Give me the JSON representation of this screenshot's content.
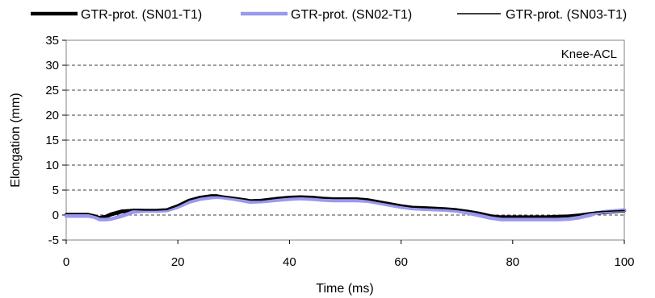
{
  "chart_data": {
    "type": "line",
    "title": "",
    "annotation": "Knee-ACL",
    "xlabel": "Time (ms)",
    "ylabel": "Elongation (mm)",
    "xlim": [
      0,
      100
    ],
    "ylim": [
      -5,
      35
    ],
    "xticks": [
      "0",
      "20",
      "40",
      "60",
      "80",
      "100"
    ],
    "xtick_values": [
      0,
      20,
      40,
      60,
      80,
      100
    ],
    "yticks": [
      "-5",
      "0",
      "5",
      "10",
      "15",
      "20",
      "25",
      "30",
      "35"
    ],
    "ytick_values": [
      -5,
      0,
      5,
      10,
      15,
      20,
      25,
      30,
      35
    ],
    "grid": "horizontal-dashed",
    "legend_position": "top",
    "series": [
      {
        "name": "GTR-prot. (SN01-T1)",
        "color": "#000000",
        "style": "thick",
        "x": [
          0,
          2,
          4,
          5,
          6,
          7,
          8,
          10,
          12,
          14,
          16,
          18,
          20,
          22,
          24,
          26,
          27,
          28,
          30,
          32,
          33,
          35,
          38,
          40,
          42,
          44,
          46,
          48,
          50,
          52,
          54,
          56,
          58,
          60,
          62,
          64,
          66,
          68,
          70,
          72,
          74,
          76,
          78,
          80,
          82,
          84,
          86,
          88,
          90,
          92,
          94,
          95,
          96,
          98,
          100
        ],
        "y": [
          0,
          0,
          0,
          -0.2,
          -0.6,
          -0.4,
          0.1,
          0.7,
          0.9,
          0.9,
          0.9,
          1.0,
          1.8,
          2.9,
          3.5,
          3.8,
          3.8,
          3.6,
          3.3,
          3.0,
          2.8,
          2.9,
          3.3,
          3.5,
          3.6,
          3.5,
          3.3,
          3.2,
          3.2,
          3.2,
          3.0,
          2.6,
          2.2,
          1.8,
          1.5,
          1.4,
          1.3,
          1.2,
          1.0,
          0.7,
          0.3,
          -0.2,
          -0.5,
          -0.5,
          -0.5,
          -0.5,
          -0.5,
          -0.4,
          -0.3,
          -0.1,
          0.2,
          0.4,
          0.5,
          0.7,
          0.9
        ]
      },
      {
        "name": "GTR-prot. (SN02-T1)",
        "color": "#9999ee",
        "style": "thick",
        "x": [
          0,
          2,
          4,
          5,
          6,
          7,
          8,
          10,
          12,
          14,
          16,
          18,
          20,
          22,
          24,
          26,
          27,
          28,
          30,
          32,
          33,
          35,
          38,
          40,
          42,
          44,
          46,
          48,
          50,
          52,
          54,
          56,
          58,
          60,
          62,
          64,
          66,
          68,
          70,
          72,
          74,
          76,
          78,
          80,
          82,
          84,
          86,
          88,
          90,
          92,
          94,
          95,
          96,
          98,
          100
        ],
        "y": [
          -0.2,
          -0.2,
          -0.2,
          -0.4,
          -0.9,
          -0.9,
          -0.8,
          -0.2,
          0.6,
          0.8,
          0.8,
          0.9,
          1.6,
          2.6,
          3.2,
          3.5,
          3.6,
          3.5,
          3.2,
          2.8,
          2.6,
          2.7,
          3.0,
          3.2,
          3.3,
          3.2,
          3.0,
          2.9,
          2.9,
          2.9,
          2.8,
          2.4,
          2.0,
          1.6,
          1.3,
          1.2,
          1.1,
          1.0,
          0.8,
          0.4,
          -0.1,
          -0.6,
          -0.9,
          -0.9,
          -0.9,
          -0.9,
          -0.9,
          -0.9,
          -0.8,
          -0.5,
          0.0,
          0.4,
          0.6,
          0.8,
          1.0
        ]
      },
      {
        "name": "GTR-prot. (SN03-T1)",
        "color": "#000000",
        "style": "thin",
        "x": [
          0,
          2,
          4,
          5,
          6,
          7,
          8,
          10,
          12,
          14,
          16,
          18,
          20,
          22,
          24,
          26,
          27,
          28,
          30,
          32,
          33,
          35,
          38,
          40,
          42,
          44,
          46,
          48,
          50,
          52,
          54,
          56,
          58,
          60,
          62,
          64,
          66,
          68,
          70,
          72,
          74,
          76,
          78,
          80,
          82,
          84,
          86,
          88,
          90,
          92,
          94,
          95,
          96,
          98,
          100
        ],
        "y": [
          0.3,
          0.3,
          0.3,
          0.0,
          -0.3,
          -0.1,
          0.4,
          1.0,
          1.1,
          1.0,
          1.0,
          1.1,
          1.9,
          3.0,
          3.6,
          3.9,
          3.9,
          3.8,
          3.5,
          3.2,
          3.0,
          3.0,
          3.4,
          3.6,
          3.7,
          3.6,
          3.4,
          3.3,
          3.3,
          3.3,
          3.1,
          2.7,
          2.3,
          1.9,
          1.6,
          1.5,
          1.4,
          1.3,
          1.1,
          0.8,
          0.5,
          0.0,
          -0.2,
          -0.2,
          -0.2,
          -0.2,
          -0.2,
          -0.1,
          0.0,
          0.2,
          0.5,
          0.6,
          0.7,
          0.8,
          0.9
        ]
      }
    ]
  }
}
